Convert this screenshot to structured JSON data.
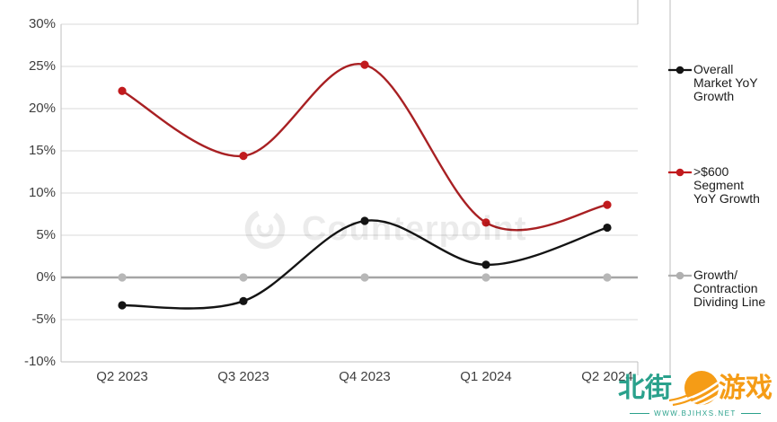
{
  "chart_data": {
    "type": "line",
    "title": "",
    "xlabel": "",
    "ylabel": "",
    "categories": [
      "Q2 2023",
      "Q3 2023",
      "Q4 2023",
      "Q1 2024",
      "Q2 2024"
    ],
    "series": [
      {
        "name": "Overall Market YoY Growth",
        "values": [
          -3.3,
          -2.8,
          6.7,
          1.5,
          5.9
        ],
        "color": "#141414",
        "marker_color": "#141414",
        "full_width": false
      },
      {
        "name": ">$600 Segment YoY Growth",
        "values": [
          22.1,
          14.4,
          25.2,
          6.5,
          8.6
        ],
        "color": "#a82023",
        "marker_color": "#c11a1d",
        "full_width": false
      },
      {
        "name": "Growth/Contraction Dividing Line",
        "values": [
          0,
          0,
          0,
          0,
          0
        ],
        "color": "#a5a5a5",
        "marker_color": "#b7b7b7",
        "full_width": true
      }
    ],
    "ylim": [
      -10,
      30
    ],
    "ytick_step": 5,
    "ytick_labels": [
      "30%",
      "25%",
      "20%",
      "15%",
      "10%",
      "5%",
      "0%",
      "-5%",
      "-10%"
    ],
    "grid": true,
    "legend_position": "right"
  },
  "legend": {
    "items": [
      {
        "label": "Overall\nMarket YoY\nGrowth",
        "color": "#141414"
      },
      {
        "label": ">$600\nSegment\nYoY Growth",
        "color": "#c11a1d"
      },
      {
        "label": "Growth/\nContraction\nDividing Line",
        "color": "#b0b0b0"
      }
    ]
  },
  "watermark": {
    "text": "Counterpoint"
  },
  "logo": {
    "left_text": "北街",
    "right_text": "游戏",
    "url": "WWW.BJIHXS.NET",
    "teal": "#2aa18c",
    "orange": "#f59c16"
  },
  "colors": {
    "gridline": "#d9d9d9",
    "plot_border": "#bfbfbf",
    "separator": "#bdbdbd",
    "axis_text": "#3f3f3f"
  }
}
